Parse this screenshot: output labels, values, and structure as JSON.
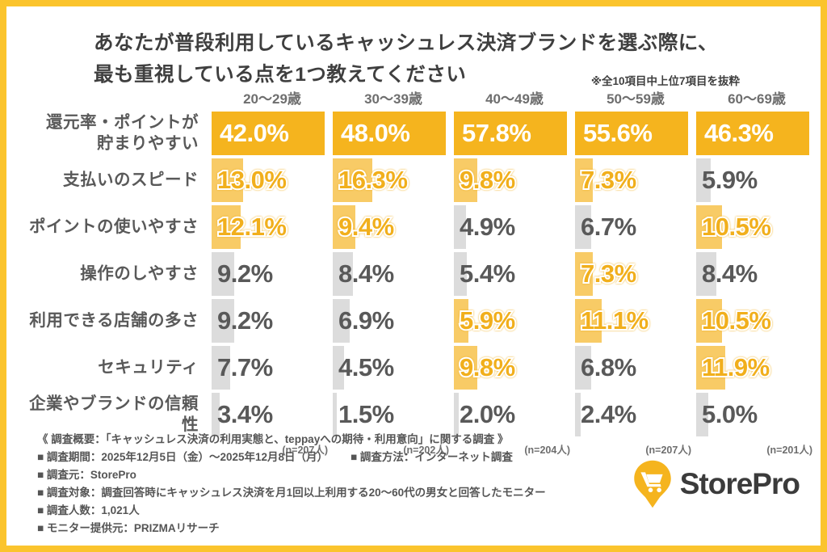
{
  "header": {
    "title_lines": [
      "あなたが普段利用しているキャッシュレス決済ブランドを選ぶ際に、",
      "最も重視している点を1つ教えてください"
    ],
    "note": "※全10項目中上位7項目を抜粋"
  },
  "chart_data": {
    "type": "bar",
    "title": "あなたが普段利用しているキャッシュレス決済ブランドを選ぶ際に、最も重視している点を1つ教えてください",
    "categories": [
      "20〜29歳",
      "30〜39歳",
      "40〜49歳",
      "50〜59歳",
      "60〜69歳"
    ],
    "value_unit": "%",
    "legend_note": "styles: primary = rank-1 solid amber bar with white text, top = top-ranked light amber bar with outlined amber text, normal = gray bar with gray text",
    "rows": [
      {
        "label": "還元率・ポイントが\n貯まりやすい",
        "values": [
          42.0,
          48.0,
          57.8,
          55.6,
          46.3
        ],
        "styles": [
          "primary",
          "primary",
          "primary",
          "primary",
          "primary"
        ]
      },
      {
        "label": "支払いのスピード",
        "values": [
          13.0,
          16.3,
          9.8,
          7.3,
          5.9
        ],
        "styles": [
          "top",
          "top",
          "top",
          "top",
          "normal"
        ]
      },
      {
        "label": "ポイントの使いやすさ",
        "values": [
          12.1,
          9.4,
          4.9,
          6.7,
          10.5
        ],
        "styles": [
          "top",
          "top",
          "normal",
          "normal",
          "top"
        ]
      },
      {
        "label": "操作のしやすさ",
        "values": [
          9.2,
          8.4,
          5.4,
          7.3,
          8.4
        ],
        "styles": [
          "normal",
          "normal",
          "normal",
          "top",
          "normal"
        ]
      },
      {
        "label": "利用できる店舗の多さ",
        "values": [
          9.2,
          6.9,
          5.9,
          11.1,
          10.5
        ],
        "styles": [
          "normal",
          "normal",
          "top",
          "top",
          "top"
        ]
      },
      {
        "label": "セキュリティ",
        "values": [
          7.7,
          4.5,
          9.8,
          6.8,
          11.9
        ],
        "styles": [
          "normal",
          "normal",
          "top",
          "normal",
          "top"
        ]
      },
      {
        "label": "企業やブランドの信頼性",
        "values": [
          3.4,
          1.5,
          2.0,
          2.4,
          5.0
        ],
        "styles": [
          "normal",
          "normal",
          "normal",
          "normal",
          "normal"
        ]
      }
    ],
    "sample_sizes": [
      "(n=207人)",
      "(n=202人)",
      "(n=204人)",
      "(n=207人)",
      "(n=201人)"
    ]
  },
  "footer": {
    "lines": [
      [
        "《 調査概要：「キャッシュレス決済の利用実態と、teppayへの期待・利用意向」に関する調査 》"
      ],
      [
        "■ 調査期間：2025年12月5日（金）〜2025年12月8日（月）",
        "■ 調査方法：インターネット調査",
        "■ 調査元：StorePro"
      ],
      [
        "■ 調査対象：調査回答時にキャッシュレス決済を月1回以上利用する20〜60代の男女と回答したモニター",
        "■ 調査人数：1,021人"
      ],
      [
        "■ モニター提供元：PRIZMAリサーチ"
      ]
    ]
  },
  "logo": {
    "text": "StorePro",
    "icon": "cart-pin-icon"
  },
  "colors": {
    "border": "#FBC42D",
    "primary_bar": "#F5B41E",
    "top_bar": "#F8CB66",
    "gray_bar": "#DCDCDC",
    "value_yellow": "#F1AF1C",
    "title_text": "#3F3F3F",
    "label_text": "#595959",
    "header_text": "#6E6E6E",
    "footer_text": "#555555",
    "logo_text": "#3B3B3B"
  }
}
